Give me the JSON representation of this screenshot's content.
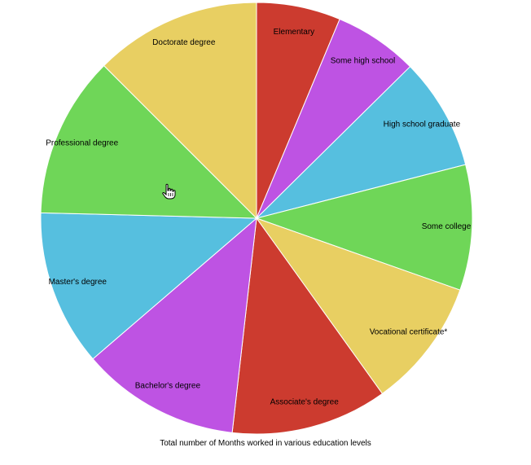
{
  "chart_data": {
    "type": "pie",
    "title": "Total number of Months worked in various education levels",
    "start_angle_deg": 0,
    "direction": "clockwise",
    "slices": [
      {
        "label": "Elementary",
        "value": 6.3,
        "color": "#cc3b2f"
      },
      {
        "label": "Some high school",
        "value": 6.3,
        "color": "#be53e3"
      },
      {
        "label": "High school graduate",
        "value": 8.4,
        "color": "#56bfdf"
      },
      {
        "label": "Some college",
        "value": 9.4,
        "color": "#6fd658"
      },
      {
        "label": "Vocational certificate*",
        "value": 9.7,
        "color": "#e8cf62"
      },
      {
        "label": "Associate's degree",
        "value": 11.7,
        "color": "#cc3b2f"
      },
      {
        "label": "Bachelor's degree",
        "value": 11.9,
        "color": "#be53e3"
      },
      {
        "label": "Master's degree",
        "value": 11.7,
        "color": "#56bfdf"
      },
      {
        "label": "Professional degree",
        "value": 12.1,
        "color": "#6fd658"
      },
      {
        "label": "Doctorate degree",
        "value": 12.5,
        "color": "#e8cf62"
      }
    ]
  },
  "cursor": {
    "icon": "hand-pointer-icon"
  }
}
